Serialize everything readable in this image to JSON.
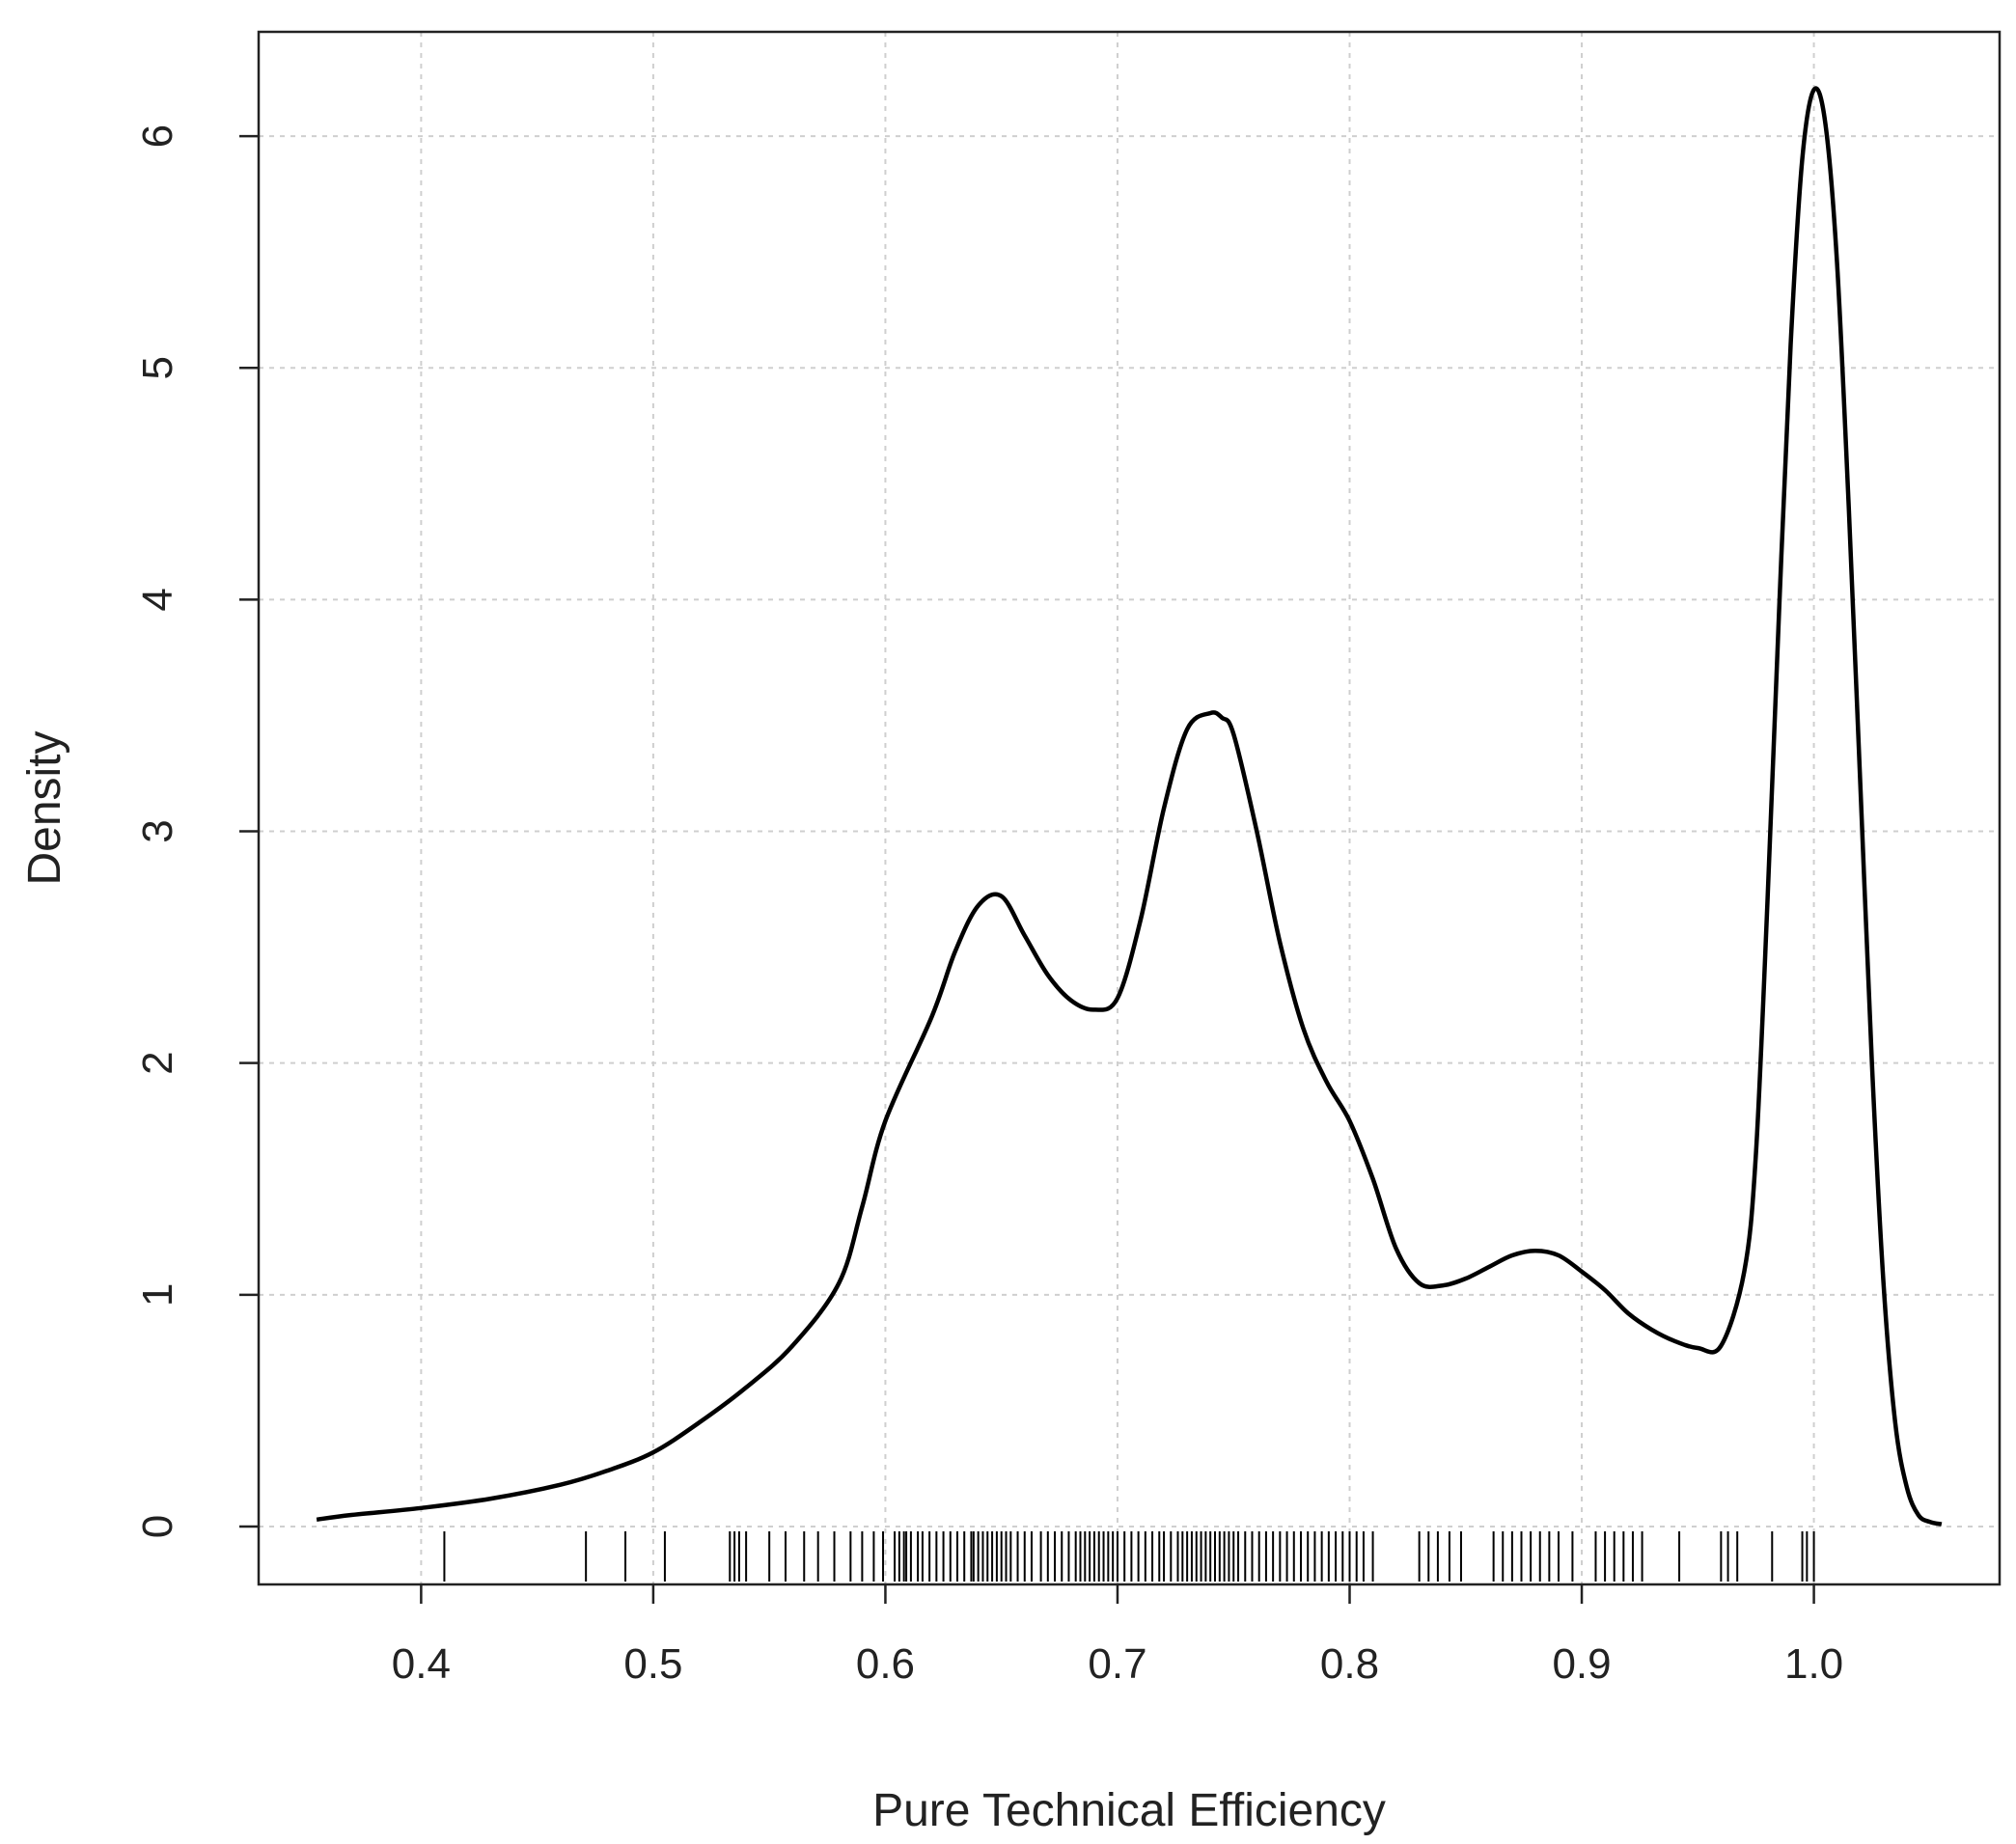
{
  "chart_data": {
    "type": "line",
    "title": "",
    "xlabel": "Pure Technical Efficiency",
    "ylabel": "Density",
    "xlim": [
      0.33,
      1.08
    ],
    "ylim": [
      -0.25,
      6.45
    ],
    "grid": true,
    "x_ticks": [
      {
        "value": 0.4,
        "label": "0.4"
      },
      {
        "value": 0.5,
        "label": "0.5"
      },
      {
        "value": 0.6,
        "label": "0.6"
      },
      {
        "value": 0.7,
        "label": "0.7"
      },
      {
        "value": 0.8,
        "label": "0.8"
      },
      {
        "value": 0.9,
        "label": "0.9"
      },
      {
        "value": 1.0,
        "label": "1.0"
      }
    ],
    "y_ticks": [
      {
        "value": 0,
        "label": "0"
      },
      {
        "value": 1,
        "label": "1"
      },
      {
        "value": 2,
        "label": "2"
      },
      {
        "value": 3,
        "label": "3"
      },
      {
        "value": 4,
        "label": "4"
      },
      {
        "value": 5,
        "label": "5"
      },
      {
        "value": 6,
        "label": "6"
      }
    ],
    "series": [
      {
        "color": "#000000",
        "x": [
          0.355,
          0.37,
          0.4,
          0.43,
          0.46,
          0.48,
          0.5,
          0.52,
          0.54,
          0.56,
          0.58,
          0.59,
          0.6,
          0.62,
          0.63,
          0.64,
          0.65,
          0.66,
          0.67,
          0.68,
          0.69,
          0.7,
          0.71,
          0.72,
          0.73,
          0.74,
          0.745,
          0.75,
          0.76,
          0.77,
          0.78,
          0.79,
          0.8,
          0.81,
          0.82,
          0.83,
          0.84,
          0.85,
          0.86,
          0.87,
          0.88,
          0.89,
          0.9,
          0.91,
          0.92,
          0.93,
          0.94,
          0.95,
          0.96,
          0.97,
          0.975,
          0.98,
          0.985,
          0.99,
          0.995,
          1.0,
          1.005,
          1.01,
          1.015,
          1.02,
          1.025,
          1.03,
          1.035,
          1.04,
          1.045,
          1.05,
          1.055
        ],
        "y": [
          0.03,
          0.05,
          0.08,
          0.12,
          0.18,
          0.24,
          0.32,
          0.45,
          0.6,
          0.78,
          1.05,
          1.38,
          1.75,
          2.2,
          2.48,
          2.68,
          2.72,
          2.55,
          2.38,
          2.27,
          2.23,
          2.28,
          2.62,
          3.1,
          3.44,
          3.51,
          3.49,
          3.42,
          3.0,
          2.52,
          2.15,
          1.92,
          1.75,
          1.5,
          1.2,
          1.05,
          1.04,
          1.07,
          1.12,
          1.17,
          1.19,
          1.17,
          1.1,
          1.02,
          0.92,
          0.85,
          0.8,
          0.77,
          0.78,
          1.1,
          1.6,
          2.7,
          3.95,
          5.1,
          5.9,
          6.2,
          6.05,
          5.45,
          4.4,
          3.2,
          2.0,
          1.05,
          0.45,
          0.17,
          0.05,
          0.02,
          0.01
        ]
      }
    ],
    "rug": [
      0.41,
      0.471,
      0.488,
      0.505,
      0.533,
      0.535,
      0.537,
      0.54,
      0.55,
      0.557,
      0.565,
      0.571,
      0.578,
      0.585,
      0.59,
      0.595,
      0.599,
      0.604,
      0.606,
      0.608,
      0.609,
      0.611,
      0.614,
      0.616,
      0.619,
      0.622,
      0.625,
      0.628,
      0.631,
      0.634,
      0.637,
      0.638,
      0.64,
      0.642,
      0.644,
      0.646,
      0.648,
      0.65,
      0.652,
      0.654,
      0.657,
      0.66,
      0.663,
      0.667,
      0.67,
      0.673,
      0.676,
      0.679,
      0.682,
      0.684,
      0.686,
      0.688,
      0.69,
      0.692,
      0.694,
      0.696,
      0.698,
      0.7,
      0.703,
      0.706,
      0.709,
      0.712,
      0.715,
      0.718,
      0.72,
      0.723,
      0.726,
      0.728,
      0.73,
      0.732,
      0.734,
      0.736,
      0.738,
      0.74,
      0.742,
      0.744,
      0.746,
      0.748,
      0.75,
      0.752,
      0.755,
      0.758,
      0.761,
      0.764,
      0.767,
      0.77,
      0.773,
      0.776,
      0.779,
      0.782,
      0.785,
      0.788,
      0.791,
      0.794,
      0.797,
      0.8,
      0.803,
      0.806,
      0.81,
      0.83,
      0.834,
      0.838,
      0.843,
      0.848,
      0.862,
      0.866,
      0.87,
      0.874,
      0.878,
      0.882,
      0.886,
      0.89,
      0.896,
      0.906,
      0.91,
      0.914,
      0.918,
      0.922,
      0.926,
      0.942,
      0.96,
      0.963,
      0.967,
      0.982,
      0.995,
      0.997,
      1.0
    ]
  }
}
